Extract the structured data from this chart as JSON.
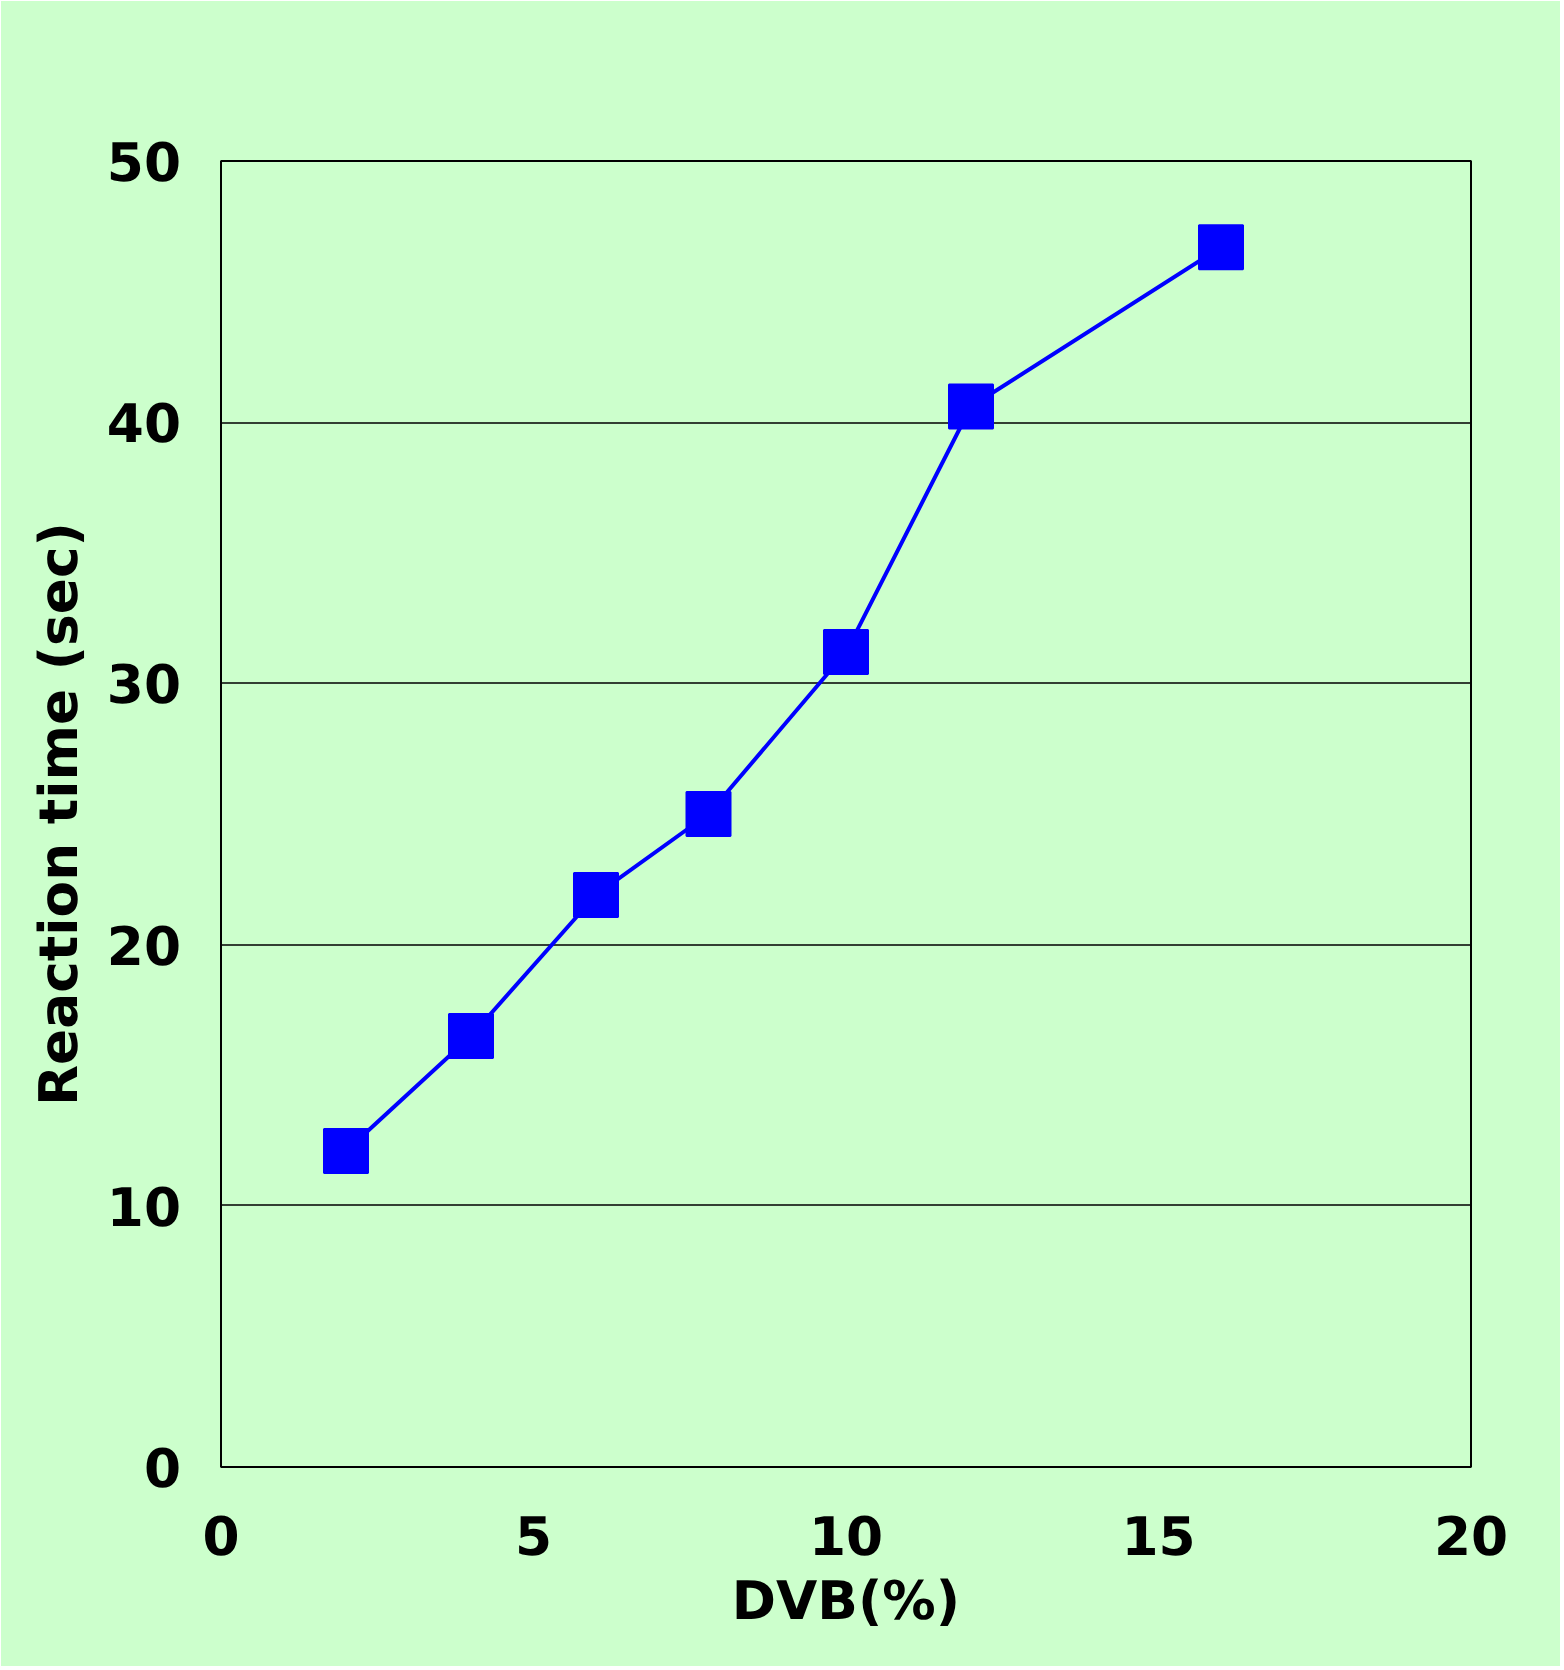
{
  "chart_data": {
    "type": "line",
    "xlabel": "DVB(%)",
    "ylabel": "Reaction time (sec)",
    "x": [
      2,
      4,
      6,
      7.8,
      10,
      12,
      16
    ],
    "series": [
      {
        "color": "#0000ff",
        "values": [
          12.1,
          16.5,
          21.9,
          25.0,
          31.2,
          40.6,
          46.7
        ]
      }
    ],
    "xlim": [
      0,
      20
    ],
    "xticks": [
      0,
      5,
      10,
      15,
      20
    ],
    "ylim": [
      0,
      50
    ],
    "yticks": [
      0,
      10,
      20,
      30,
      40,
      50
    ],
    "grid": "y",
    "marker": "square",
    "line_style": "solid"
  }
}
